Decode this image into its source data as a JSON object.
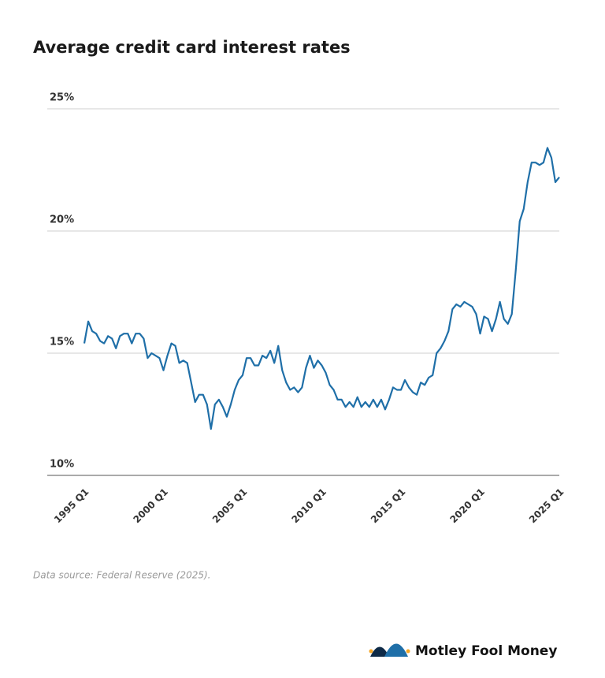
{
  "chart_data": {
    "type": "line",
    "title": "Average credit card interest rates",
    "categories": [
      "1995 Q1",
      null,
      null,
      null,
      null,
      null,
      null,
      null,
      null,
      null,
      null,
      null,
      null,
      null,
      null,
      null,
      null,
      null,
      null,
      null,
      "2000 Q1",
      null,
      null,
      null,
      null,
      null,
      null,
      null,
      null,
      null,
      null,
      null,
      null,
      null,
      null,
      null,
      null,
      null,
      null,
      null,
      "2005 Q1",
      null,
      null,
      null,
      null,
      null,
      null,
      null,
      null,
      null,
      null,
      null,
      null,
      null,
      null,
      null,
      null,
      null,
      null,
      null,
      "2010 Q1",
      null,
      null,
      null,
      null,
      null,
      null,
      null,
      null,
      null,
      null,
      null,
      null,
      null,
      null,
      null,
      null,
      null,
      null,
      null,
      "2015 Q1",
      null,
      null,
      null,
      null,
      null,
      null,
      null,
      null,
      null,
      null,
      null,
      null,
      null,
      null,
      null,
      null,
      null,
      null,
      null,
      "2020 Q1",
      null,
      null,
      null,
      null,
      null,
      null,
      null,
      null,
      null,
      null,
      null,
      null,
      null,
      null,
      null,
      null,
      null,
      null,
      null,
      "2025 Q1"
    ],
    "values": [
      15.4,
      16.3,
      15.9,
      15.8,
      15.5,
      15.4,
      15.7,
      15.6,
      15.2,
      15.7,
      15.8,
      15.8,
      15.4,
      15.8,
      15.8,
      15.6,
      14.8,
      15.0,
      14.9,
      14.8,
      14.3,
      14.9,
      15.4,
      15.3,
      14.6,
      14.7,
      14.6,
      13.8,
      13.0,
      13.3,
      13.3,
      12.9,
      11.9,
      12.9,
      13.1,
      12.8,
      12.4,
      12.9,
      13.5,
      13.9,
      14.1,
      14.8,
      14.8,
      14.5,
      14.5,
      14.9,
      14.8,
      15.1,
      14.6,
      15.3,
      14.3,
      13.8,
      13.5,
      13.6,
      13.4,
      13.6,
      14.4,
      14.9,
      14.4,
      14.7,
      14.5,
      14.2,
      13.7,
      13.5,
      13.1,
      13.1,
      12.8,
      13.0,
      12.8,
      13.2,
      12.8,
      13.0,
      12.8,
      13.1,
      12.8,
      13.1,
      12.7,
      13.1,
      13.6,
      13.5,
      13.5,
      13.9,
      13.6,
      13.4,
      13.3,
      13.8,
      13.7,
      14.0,
      14.1,
      15.0,
      15.2,
      15.5,
      15.9,
      16.8,
      17.0,
      16.9,
      17.1,
      17.0,
      16.9,
      16.6,
      15.8,
      16.5,
      16.4,
      15.9,
      16.4,
      17.1,
      16.4,
      16.2,
      16.6,
      18.4,
      20.4,
      20.9,
      22.0,
      22.8,
      22.8,
      22.7,
      22.8,
      23.4,
      23.0,
      22.0,
      22.2
    ],
    "color": "#1f6fa8",
    "ylim": [
      10,
      25
    ],
    "yticks": [
      {
        "value": 10,
        "label": "10%"
      },
      {
        "value": 15,
        "label": "15%"
      },
      {
        "value": 20,
        "label": "20%"
      },
      {
        "value": 25,
        "label": "25%"
      }
    ],
    "grid": true
  },
  "source": "Data source: Federal Reserve (2025).",
  "brand": "Motley Fool Money"
}
